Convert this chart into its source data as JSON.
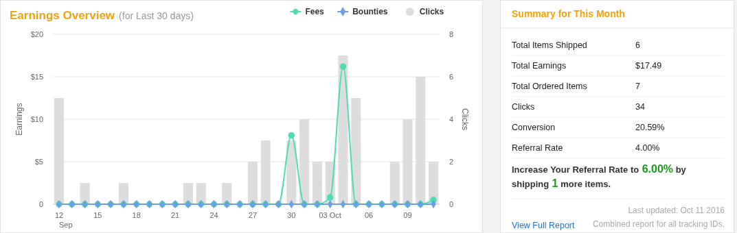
{
  "chart_data": [
    {
      "type": "line",
      "title": "Earnings Overview",
      "subtitle": "(for Last 30 days)",
      "ylabel": "Earnings",
      "y2label": "Clicks",
      "categories": [
        "12\nSep",
        null,
        null,
        "15",
        null,
        null,
        "18",
        null,
        null,
        "21",
        null,
        null,
        "24",
        null,
        null,
        "27",
        null,
        null,
        "30",
        null,
        null,
        "03 Oct",
        null,
        null,
        "06",
        null,
        null,
        "09",
        null,
        null
      ],
      "series": [
        {
          "name": "Fees",
          "type": "line",
          "color": "#4fdcb5",
          "marker": "circle",
          "values": [
            0,
            0,
            0,
            0,
            0,
            0,
            0,
            0,
            0,
            0,
            0,
            0,
            0,
            0,
            0,
            0,
            0,
            0,
            8.1,
            0,
            0,
            0.8,
            16.2,
            0,
            0,
            0,
            0,
            0,
            0,
            0.5
          ]
        },
        {
          "name": "Bounties",
          "type": "line",
          "color": "#6aa0e0",
          "marker": "diamond",
          "values": [
            0,
            0,
            0,
            0,
            0,
            0,
            0,
            0,
            0,
            0,
            0,
            0,
            0,
            0,
            0,
            0,
            0,
            0,
            0,
            0,
            0,
            0,
            0,
            0,
            0,
            0,
            0,
            0,
            0,
            0
          ]
        },
        {
          "name": "Clicks",
          "type": "bar",
          "axis": "y2",
          "color": "#dddddd",
          "marker": "circle",
          "values": [
            5,
            0,
            1,
            0,
            0,
            1,
            0,
            0,
            0,
            0,
            1,
            1,
            0,
            1,
            0,
            2,
            3,
            0,
            3,
            4,
            2,
            2,
            7,
            5,
            0,
            0,
            2,
            4,
            6,
            2
          ]
        }
      ],
      "ylim": [
        0,
        20
      ],
      "yticks": [
        {
          "value": 0,
          "label": "0"
        },
        {
          "value": 5,
          "label": "$5"
        },
        {
          "value": 10,
          "label": "$10"
        },
        {
          "value": 15,
          "label": "$15"
        },
        {
          "value": 20,
          "label": "$20"
        }
      ],
      "y2lim": [
        0,
        8
      ],
      "y2ticks": [
        0,
        2,
        4,
        6,
        8
      ],
      "grid": "y",
      "legend": "top right",
      "line_style": "solid"
    },
    {
      "type": "other",
      "title": "Summary for This Month",
      "categories": [
        "Total Items Shipped",
        "Total Earnings",
        "Total Ordered Items",
        "Clicks",
        "Conversion",
        "Referral Rate"
      ],
      "value_labels": [
        "6",
        "$17.49",
        "7",
        "34",
        "20.59%",
        "4.00%"
      ],
      "annotations": [
        "Increase Your Referral Rate to 6.00% by shipping 1 more items.",
        "Last updated: Oct 11 2016",
        "View Full Report",
        "Combined report for all tracking IDs."
      ]
    }
  ]
}
